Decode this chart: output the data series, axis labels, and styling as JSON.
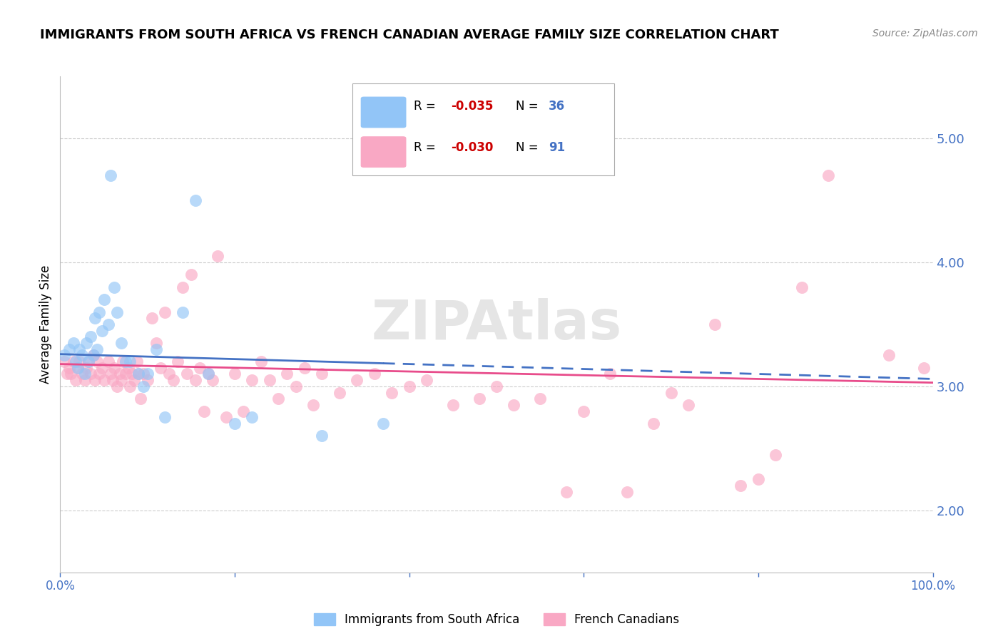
{
  "title": "IMMIGRANTS FROM SOUTH AFRICA VS FRENCH CANADIAN AVERAGE FAMILY SIZE CORRELATION CHART",
  "source": "Source: ZipAtlas.com",
  "ylabel": "Average Family Size",
  "right_yticks": [
    2.0,
    3.0,
    4.0,
    5.0
  ],
  "right_ytick_labels": [
    "2.00",
    "3.00",
    "4.00",
    "5.00"
  ],
  "ymin": 1.5,
  "ymax": 5.5,
  "xmin": 0.0,
  "xmax": 1.0,
  "watermark": "ZIPAtlas",
  "series1_color": "#92C5F7",
  "series2_color": "#F9A8C4",
  "trend1_color": "#4472C4",
  "trend2_color": "#E84C8B",
  "grid_color": "#CCCCCC",
  "background_color": "#FFFFFF",
  "title_fontsize": 13,
  "axis_label_color": "#4472C4",
  "legend_r1_val": "-0.035",
  "legend_n1_val": "36",
  "legend_r2_val": "-0.030",
  "legend_n2_val": "91",
  "series1_label": "Immigrants from South Africa",
  "series2_label": "French Canadians",
  "series1_x": [
    0.005,
    0.01,
    0.015,
    0.018,
    0.02,
    0.022,
    0.025,
    0.028,
    0.03,
    0.032,
    0.035,
    0.038,
    0.04,
    0.042,
    0.045,
    0.048,
    0.05,
    0.055,
    0.058,
    0.062,
    0.065,
    0.07,
    0.075,
    0.08,
    0.09,
    0.095,
    0.1,
    0.11,
    0.12,
    0.14,
    0.155,
    0.17,
    0.2,
    0.22,
    0.3,
    0.37
  ],
  "series1_y": [
    3.25,
    3.3,
    3.35,
    3.2,
    3.15,
    3.3,
    3.25,
    3.1,
    3.35,
    3.2,
    3.4,
    3.25,
    3.55,
    3.3,
    3.6,
    3.45,
    3.7,
    3.5,
    4.7,
    3.8,
    3.6,
    3.35,
    3.2,
    3.2,
    3.1,
    3.0,
    3.1,
    3.3,
    2.75,
    3.6,
    4.5,
    3.1,
    2.7,
    2.75,
    2.6,
    2.7
  ],
  "series2_x": [
    0.005,
    0.008,
    0.01,
    0.012,
    0.015,
    0.018,
    0.02,
    0.022,
    0.025,
    0.028,
    0.03,
    0.032,
    0.035,
    0.038,
    0.04,
    0.042,
    0.045,
    0.048,
    0.05,
    0.055,
    0.058,
    0.06,
    0.062,
    0.065,
    0.068,
    0.07,
    0.072,
    0.075,
    0.078,
    0.08,
    0.082,
    0.085,
    0.088,
    0.09,
    0.092,
    0.095,
    0.1,
    0.105,
    0.11,
    0.115,
    0.12,
    0.125,
    0.13,
    0.135,
    0.14,
    0.145,
    0.15,
    0.155,
    0.16,
    0.165,
    0.17,
    0.175,
    0.18,
    0.19,
    0.2,
    0.21,
    0.22,
    0.23,
    0.24,
    0.25,
    0.26,
    0.27,
    0.28,
    0.29,
    0.3,
    0.32,
    0.34,
    0.36,
    0.38,
    0.4,
    0.42,
    0.45,
    0.48,
    0.5,
    0.52,
    0.55,
    0.58,
    0.6,
    0.63,
    0.65,
    0.68,
    0.7,
    0.72,
    0.75,
    0.78,
    0.8,
    0.82,
    0.85,
    0.88,
    0.95,
    0.99
  ],
  "series2_y": [
    3.2,
    3.1,
    3.15,
    3.1,
    3.2,
    3.05,
    3.15,
    3.2,
    3.1,
    3.05,
    3.15,
    3.2,
    3.1,
    3.25,
    3.05,
    3.2,
    3.1,
    3.15,
    3.05,
    3.2,
    3.1,
    3.05,
    3.15,
    3.0,
    3.1,
    3.05,
    3.2,
    3.1,
    3.15,
    3.0,
    3.1,
    3.05,
    3.2,
    3.1,
    2.9,
    3.1,
    3.05,
    3.55,
    3.35,
    3.15,
    3.6,
    3.1,
    3.05,
    3.2,
    3.8,
    3.1,
    3.9,
    3.05,
    3.15,
    2.8,
    3.1,
    3.05,
    4.05,
    2.75,
    3.1,
    2.8,
    3.05,
    3.2,
    3.05,
    2.9,
    3.1,
    3.0,
    3.15,
    2.85,
    3.1,
    2.95,
    3.05,
    3.1,
    2.95,
    3.0,
    3.05,
    2.85,
    2.9,
    3.0,
    2.85,
    2.9,
    2.15,
    2.8,
    3.1,
    2.15,
    2.7,
    2.95,
    2.85,
    3.5,
    2.2,
    2.25,
    2.45,
    3.8,
    4.7,
    3.25,
    3.15
  ]
}
